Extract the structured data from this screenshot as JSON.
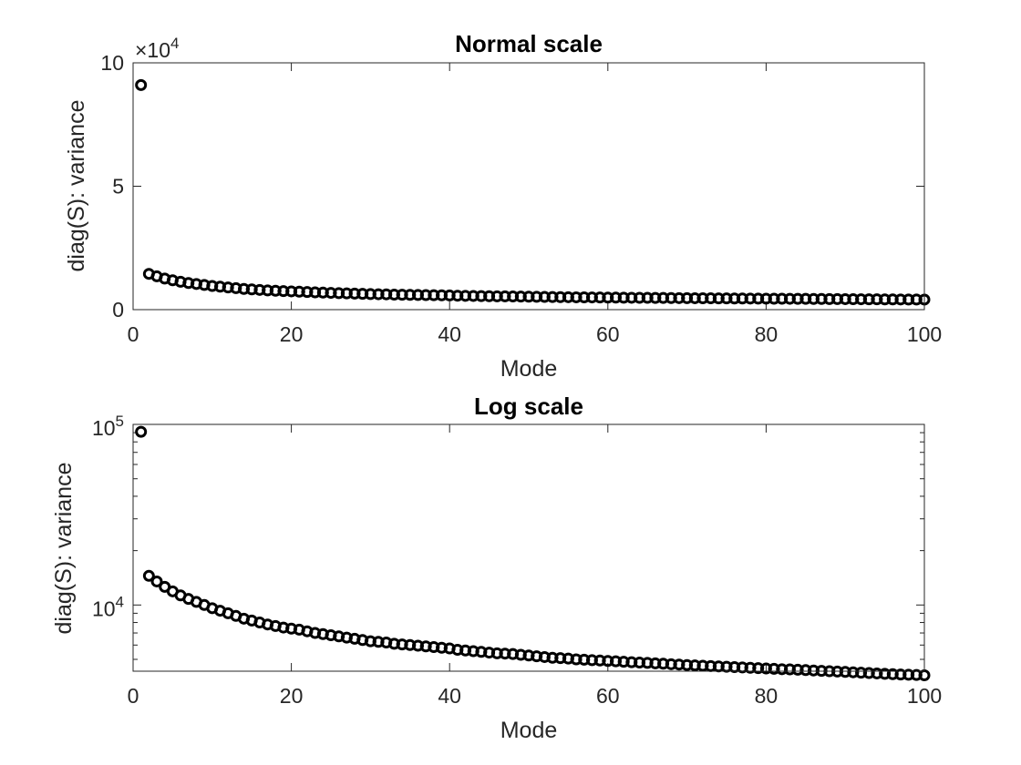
{
  "chart_data": [
    {
      "type": "scatter",
      "title": "Normal scale",
      "xlabel": "Mode",
      "ylabel": "diag(S): variance",
      "xlim": [
        0,
        100
      ],
      "ylim": [
        0,
        100000
      ],
      "yscale": "linear",
      "y_exponent_label": "×10",
      "y_exponent_power": "4",
      "x_ticks": [
        0,
        20,
        40,
        60,
        80,
        100
      ],
      "x_tick_labels": [
        "0",
        "20",
        "40",
        "60",
        "80",
        "100"
      ],
      "y_ticks": [
        0,
        50000,
        100000
      ],
      "y_tick_labels": [
        "0",
        "5",
        "10"
      ],
      "marker": "circle",
      "grid": false
    },
    {
      "type": "scatter",
      "title": "Log scale",
      "xlabel": "Mode",
      "ylabel": "diag(S): variance",
      "xlim": [
        0,
        100
      ],
      "ylim": [
        4300,
        100000
      ],
      "yscale": "log",
      "x_ticks": [
        0,
        20,
        40,
        60,
        80,
        100
      ],
      "x_tick_labels": [
        "0",
        "20",
        "40",
        "60",
        "80",
        "100"
      ],
      "y_ticks": [
        10000,
        100000
      ],
      "y_tick_labels": [
        {
          "base": "10",
          "exp": "4"
        },
        {
          "base": "10",
          "exp": "5"
        }
      ],
      "marker": "circle",
      "grid": false
    }
  ],
  "series": {
    "x": [
      1,
      2,
      3,
      4,
      5,
      6,
      7,
      8,
      9,
      10,
      11,
      12,
      13,
      14,
      15,
      16,
      17,
      18,
      19,
      20,
      21,
      22,
      23,
      24,
      25,
      26,
      27,
      28,
      29,
      30,
      31,
      32,
      33,
      34,
      35,
      36,
      37,
      38,
      39,
      40,
      41,
      42,
      43,
      44,
      45,
      46,
      47,
      48,
      49,
      50,
      51,
      52,
      53,
      54,
      55,
      56,
      57,
      58,
      59,
      60,
      61,
      62,
      63,
      64,
      65,
      66,
      67,
      68,
      69,
      70,
      71,
      72,
      73,
      74,
      75,
      76,
      77,
      78,
      79,
      80,
      81,
      82,
      83,
      84,
      85,
      86,
      87,
      88,
      89,
      90,
      91,
      92,
      93,
      94,
      95,
      96,
      97,
      98,
      99,
      100
    ],
    "y": [
      91000,
      14500,
      13500,
      12600,
      11900,
      11300,
      10800,
      10400,
      10000,
      9600,
      9300,
      9000,
      8700,
      8400,
      8200,
      8000,
      7800,
      7650,
      7500,
      7400,
      7300,
      7150,
      7000,
      6900,
      6800,
      6700,
      6600,
      6500,
      6400,
      6300,
      6250,
      6200,
      6100,
      6050,
      6000,
      5950,
      5900,
      5850,
      5800,
      5750,
      5650,
      5600,
      5550,
      5500,
      5450,
      5400,
      5380,
      5350,
      5300,
      5250,
      5200,
      5150,
      5100,
      5080,
      5050,
      5000,
      4980,
      4950,
      4930,
      4900,
      4880,
      4850,
      4820,
      4800,
      4780,
      4750,
      4730,
      4700,
      4680,
      4650,
      4630,
      4610,
      4590,
      4570,
      4550,
      4530,
      4510,
      4490,
      4470,
      4450,
      4430,
      4410,
      4400,
      4380,
      4360,
      4340,
      4320,
      4300,
      4280,
      4260,
      4240,
      4220,
      4200,
      4180,
      4160,
      4140,
      4120,
      4110,
      4100,
      4080
    ]
  }
}
